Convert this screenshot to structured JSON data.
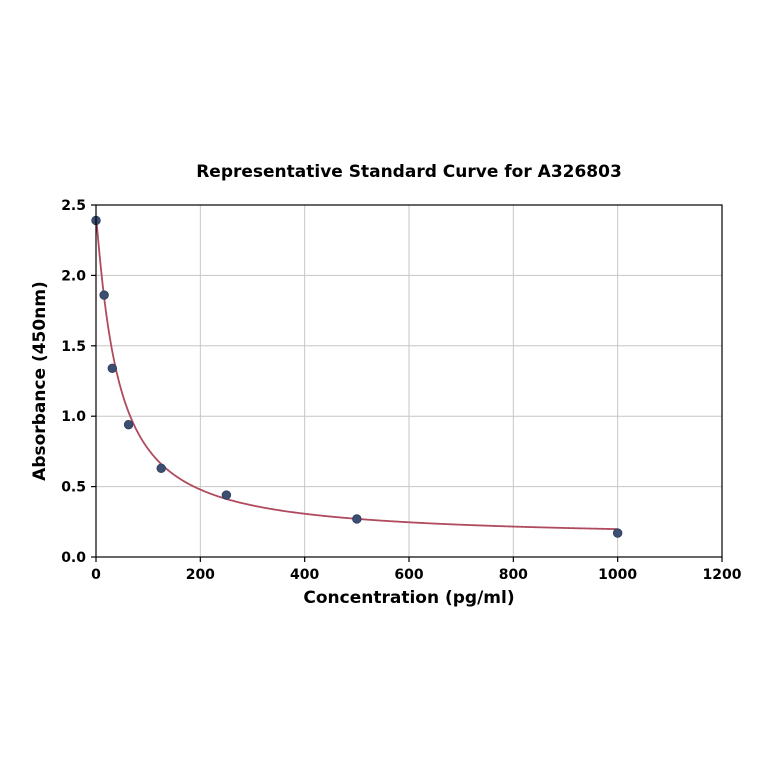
{
  "chart_data": {
    "type": "scatter",
    "title": "Representative Standard Curve for A326803",
    "xlabel": "Concentration (pg/ml)",
    "ylabel": "Absorbance (450nm)",
    "xlim": [
      0,
      1200
    ],
    "ylim": [
      0,
      2.5
    ],
    "x_ticks": [
      "0",
      "200",
      "400",
      "600",
      "800",
      "1000",
      "1200"
    ],
    "y_ticks": [
      "0.0",
      "0.5",
      "1.0",
      "1.5",
      "2.0",
      "2.5"
    ],
    "grid": true,
    "legend": "none",
    "points": [
      {
        "x": 0,
        "y": 2.39
      },
      {
        "x": 15.6,
        "y": 1.86
      },
      {
        "x": 31.2,
        "y": 1.34
      },
      {
        "x": 62.5,
        "y": 0.94
      },
      {
        "x": 125,
        "y": 0.63
      },
      {
        "x": 250,
        "y": 0.44
      },
      {
        "x": 500,
        "y": 0.27
      },
      {
        "x": 1000,
        "y": 0.17
      }
    ],
    "fit_curve": {
      "model": "4PL",
      "A": 2.42,
      "B": 1.1,
      "C": 42,
      "D": 0.13,
      "x_start": 0,
      "x_end": 1000
    },
    "colors": {
      "point_fill": "#3c4e72",
      "point_edge": "#2d3c59",
      "curve": "#b04a5f",
      "grid": "#c6c6c6",
      "axis": "#000000",
      "background": "#ffffff"
    }
  }
}
